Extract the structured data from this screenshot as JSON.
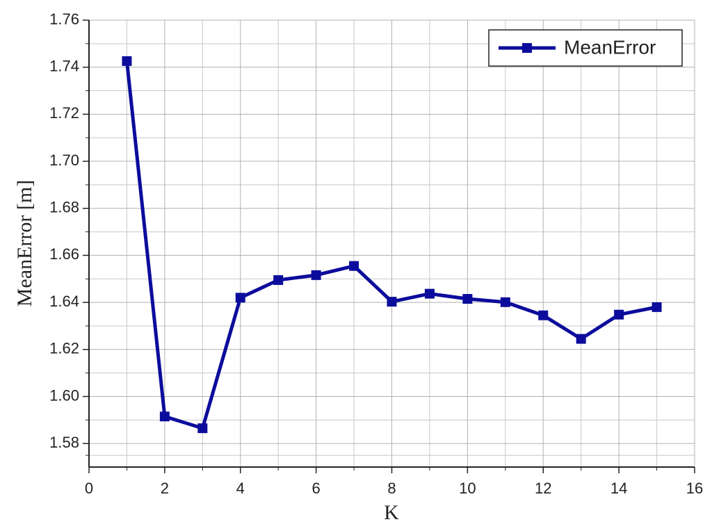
{
  "chart_data": {
    "type": "line",
    "x_label": "K",
    "y_label": "MeanError [m]",
    "x": [
      1,
      2,
      3,
      4,
      5,
      6,
      7,
      8,
      9,
      10,
      11,
      12,
      13,
      14,
      15
    ],
    "series": [
      {
        "name": "MeanError",
        "color": "#0c0c9c",
        "values": [
          1.7426,
          1.5915,
          1.5865,
          1.642,
          1.6495,
          1.6516,
          1.6555,
          1.6403,
          1.6437,
          1.6415,
          1.6401,
          1.6345,
          1.6245,
          1.6348,
          1.638
        ]
      }
    ],
    "xlim": [
      0,
      16
    ],
    "xticks": [
      0,
      2,
      4,
      6,
      8,
      10,
      12,
      14,
      16
    ],
    "ylim": [
      1.57,
      1.76
    ],
    "yticks": [
      1.58,
      {
        "value": 1.6,
        "label": "1.60"
      },
      1.62,
      1.64,
      1.66,
      1.68,
      {
        "value": 1.7,
        "label": "1.70"
      },
      1.72,
      1.74,
      1.76
    ],
    "grid": true,
    "legend": "top-right"
  }
}
